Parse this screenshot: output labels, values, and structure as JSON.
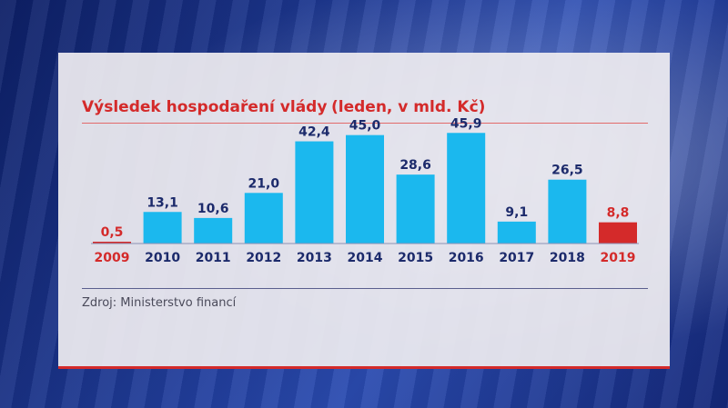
{
  "header": {
    "title": "Výsledek hospodaření vlády",
    "subtitle": "(leden, v mld. Kč)"
  },
  "footer": {
    "source": "Zdroj: Ministerstvo financí"
  },
  "colors": {
    "bar": "#1bb8ee",
    "highlight": "#d42a2a",
    "label": "#1c2a6b",
    "accent": "#d42a2a"
  },
  "chart_data": {
    "type": "bar",
    "title": "Výsledek hospodaření vlády",
    "subtitle": "(leden, v mld. Kč)",
    "xlabel": "",
    "ylabel": "",
    "categories": [
      "2009",
      "2010",
      "2011",
      "2012",
      "2013",
      "2014",
      "2015",
      "2016",
      "2017",
      "2018",
      "2019"
    ],
    "values": [
      0.5,
      13.1,
      10.6,
      21.0,
      42.4,
      45.0,
      28.6,
      45.9,
      9.1,
      26.5,
      8.8
    ],
    "value_labels": [
      "0,5",
      "13,1",
      "10,6",
      "21,0",
      "42,4",
      "45,0",
      "28,6",
      "45,9",
      "9,1",
      "26,5",
      "8,8"
    ],
    "highlighted": [
      "2009",
      "2019"
    ],
    "ylim": [
      0,
      46
    ],
    "grid": false,
    "legend": "none"
  }
}
